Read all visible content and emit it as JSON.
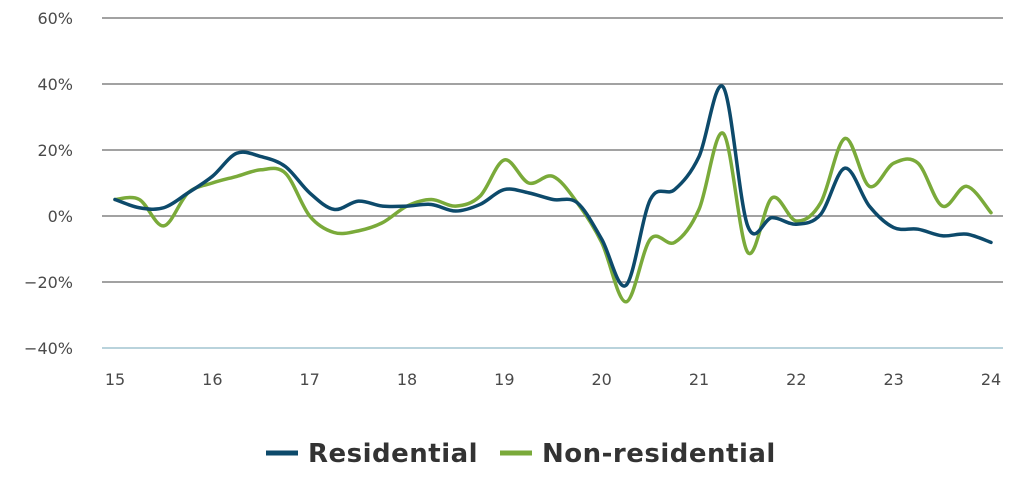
{
  "chart_data": {
    "type": "line",
    "x_tick_labels": [
      "15",
      "16",
      "17",
      "18",
      "19",
      "20",
      "21",
      "22",
      "23",
      "24"
    ],
    "y_tick_labels": [
      "60%",
      "40%",
      "20%",
      "0%",
      "−20%",
      "−40%"
    ],
    "xlim": [
      15,
      24
    ],
    "ylim": [
      -40,
      60
    ],
    "y_ticks": [
      60,
      40,
      20,
      0,
      -20,
      -40
    ],
    "grid": true,
    "legend_position": "bottom-center",
    "series": [
      {
        "name": "Residential",
        "color": "#0d4a6b",
        "x": [
          15.0,
          15.25,
          15.5,
          15.75,
          16.0,
          16.25,
          16.5,
          16.75,
          17.0,
          17.25,
          17.5,
          17.75,
          18.0,
          18.25,
          18.5,
          18.75,
          19.0,
          19.25,
          19.5,
          19.75,
          20.0,
          20.25,
          20.5,
          20.75,
          21.0,
          21.25,
          21.5,
          21.75,
          22.0,
          22.25,
          22.5,
          22.75,
          23.0,
          23.25,
          23.5,
          23.75,
          24.0
        ],
        "y": [
          5,
          2.5,
          2.5,
          7,
          12,
          19,
          18,
          15,
          7,
          2,
          4.5,
          3,
          3,
          3.5,
          1.5,
          3.5,
          8,
          7,
          5,
          4,
          -7,
          -21,
          5,
          8,
          18,
          39,
          -3,
          -0.5,
          -2.5,
          0.5,
          14.5,
          3,
          -3.5,
          -4,
          -6,
          -5.5,
          -8
        ]
      },
      {
        "name": "Non-residential",
        "color": "#7aaa3a",
        "x": [
          15.0,
          15.25,
          15.5,
          15.75,
          16.0,
          16.25,
          16.5,
          16.75,
          17.0,
          17.25,
          17.5,
          17.75,
          18.0,
          18.25,
          18.5,
          18.75,
          19.0,
          19.25,
          19.5,
          19.75,
          20.0,
          20.25,
          20.5,
          20.75,
          21.0,
          21.25,
          21.5,
          21.75,
          22.0,
          22.25,
          22.5,
          22.75,
          23.0,
          23.25,
          23.5,
          23.75,
          24.0
        ],
        "y": [
          5,
          5,
          -3,
          7,
          10,
          12,
          14,
          13,
          0,
          -5,
          -4.5,
          -2,
          3,
          5,
          3,
          6,
          17,
          10,
          12,
          4,
          -8,
          -26,
          -7,
          -8,
          2,
          25,
          -11,
          5.5,
          -1.5,
          4,
          23.5,
          9,
          16,
          16,
          3,
          9,
          1
        ]
      }
    ]
  }
}
